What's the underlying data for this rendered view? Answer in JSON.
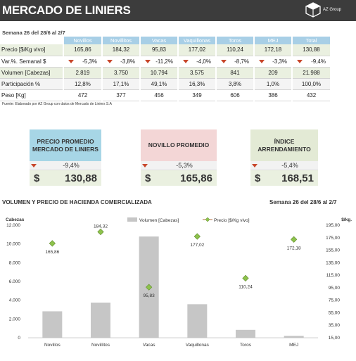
{
  "header": {
    "title": "MERCADO DE LINIERS",
    "brand": "AZ Group"
  },
  "week_label": "Semana 26 del 28/6 al 2/7",
  "table": {
    "columns": [
      "Novillos",
      "Novillitos",
      "Vacas",
      "Vaquillonas",
      "Toros",
      "MEJ",
      "Total"
    ],
    "rows": [
      {
        "label": "Precio [$/Kg vivo]",
        "values": [
          "165,86",
          "184,32",
          "95,83",
          "177,02",
          "110,24",
          "172,18",
          "130,88"
        ]
      },
      {
        "label": "Var.%. Semanal $",
        "values": [
          "-5,3%",
          "-3,8%",
          "-11,2%",
          "-4,0%",
          "-8,7%",
          "-3,3%",
          "-9,4%"
        ]
      },
      {
        "label": "Volumen [Cabezas]",
        "values": [
          "2.819",
          "3.750",
          "10.794",
          "3.575",
          "841",
          "209",
          "21.988"
        ]
      },
      {
        "label": "Participación %",
        "values": [
          "12,8%",
          "17,1%",
          "49,1%",
          "16,3%",
          "3,8%",
          "1,0%",
          "100,0%"
        ]
      },
      {
        "label": "Peso  [Kg]",
        "values": [
          "472",
          "377",
          "456",
          "349",
          "606",
          "386",
          "432"
        ]
      }
    ]
  },
  "source_note": "Fuente: Elaborado por AZ Group con datos de Mercado de Liniers S.A",
  "cards": [
    {
      "caption": "PRECIO PROMEDIO MERCADO DE LINIERS",
      "var": "-9,4%",
      "currency": "$",
      "price": "130,88"
    },
    {
      "caption": "NOVILLO PROMEDIO",
      "var": "-5,3%",
      "currency": "$",
      "price": "165,86"
    },
    {
      "caption": "ÍNDICE ARRENDAMIENTO",
      "var": "-5,4%",
      "currency": "$",
      "price": "168,51"
    }
  ],
  "chart_title": "VOLUMEN Y PRECIO DE HACIENDA COMERCIALIZADA",
  "chart_week": "Semana 26 del 28/6 al 2/7",
  "chart_data": {
    "type": "bar",
    "categories": [
      "Novillos",
      "Novillitos",
      "Vacas",
      "Vaquillonas",
      "Toros",
      "MEJ"
    ],
    "series": [
      {
        "name": "Volumen [Cabezas]",
        "type": "bar",
        "axis": "left",
        "values": [
          2819,
          3750,
          10794,
          3575,
          841,
          209
        ]
      },
      {
        "name": "Precio [$/Kg vivo]",
        "type": "scatter",
        "axis": "right",
        "values": [
          165.86,
          184.32,
          95.83,
          177.02,
          110.24,
          172.18
        ],
        "labels": [
          "165,86",
          "184,32",
          "95,83",
          "177,02",
          "110,24",
          "172,18"
        ]
      }
    ],
    "ylabel_left": "Cabezas",
    "ylabel_right": "$/kg.",
    "ylim_left": [
      0,
      12000
    ],
    "ylim_right": [
      15,
      195
    ],
    "yticks_left": [
      "0",
      "2.000",
      "4.000",
      "6.000",
      "8.000",
      "10.000",
      "12.000"
    ],
    "yticks_right": [
      "15,00",
      "35,00",
      "55,00",
      "75,00",
      "95,00",
      "115,00",
      "135,00",
      "155,00",
      "175,00",
      "195,00"
    ],
    "colors": {
      "bar": "#c6c6c6",
      "marker": "#8dc24c",
      "marker_edge": "#5e8a2a",
      "legend_line": "#b06a3a"
    },
    "legend_position": "top"
  }
}
